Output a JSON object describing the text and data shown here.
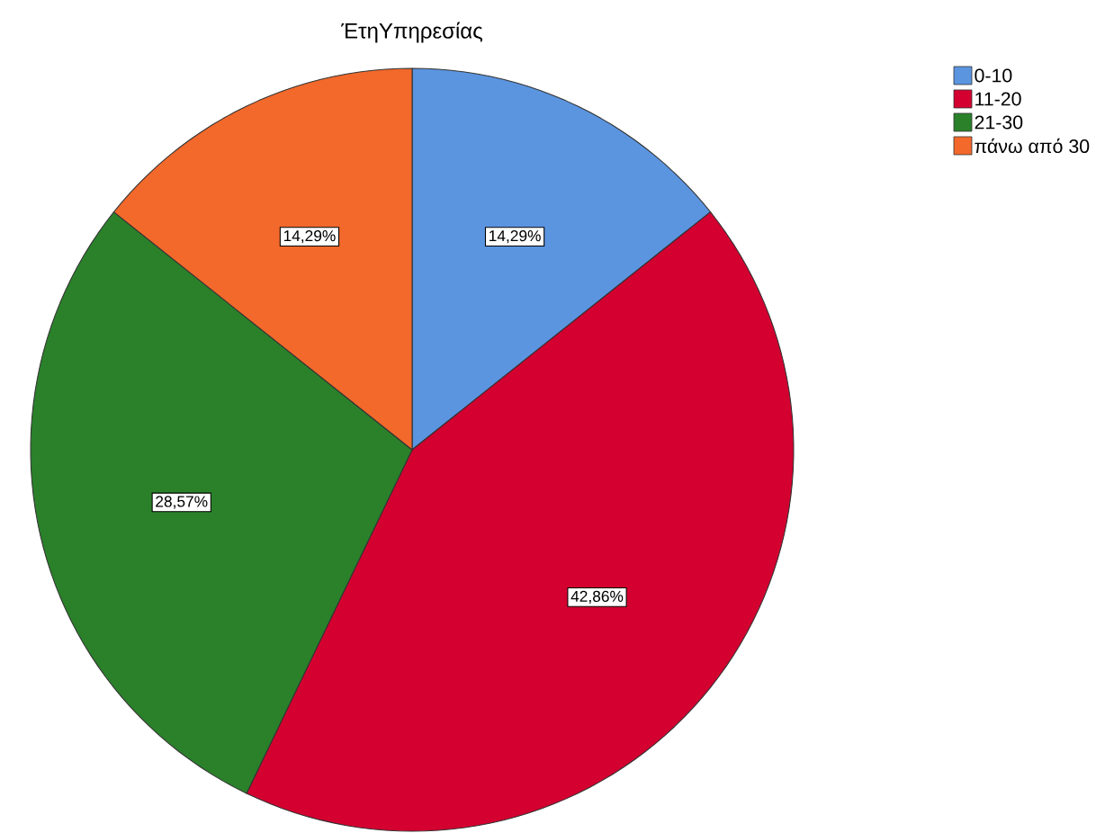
{
  "chart_data": {
    "type": "pie",
    "title": "ΈτηΥπηρεσίας",
    "categories": [
      "0-10",
      "11-20",
      "21-30",
      "πάνω από 30"
    ],
    "values": [
      14.29,
      42.86,
      28.57,
      14.29
    ],
    "colors": [
      "#5b95e0",
      "#d40030",
      "#2a812a",
      "#f2692b"
    ],
    "value_labels": [
      "14,29%",
      "42,86%",
      "28,57%",
      "14,29%"
    ],
    "legend": "top right"
  }
}
